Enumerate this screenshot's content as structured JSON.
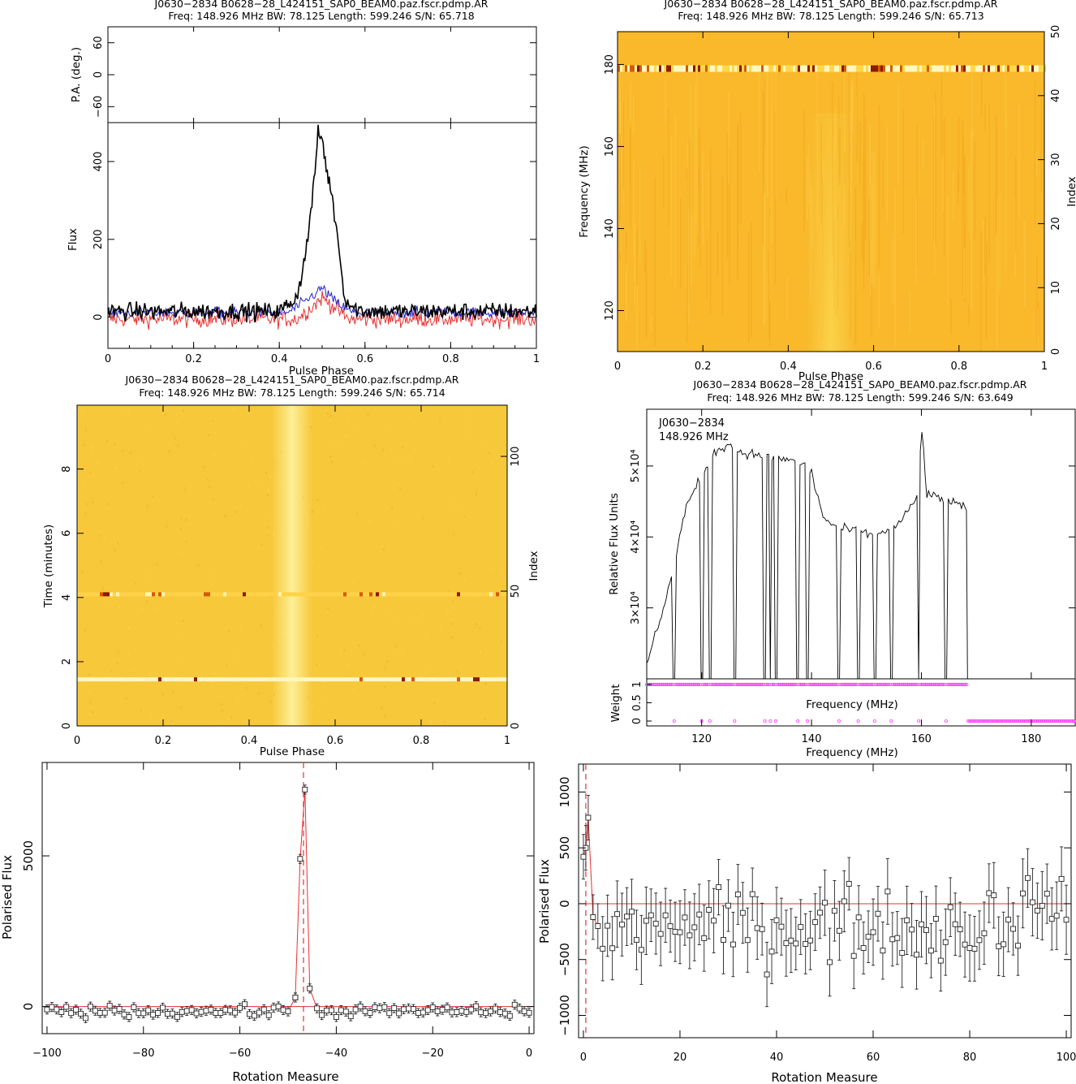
{
  "colors": {
    "heat_bg": "#f9b92b",
    "heat_bg2": "#f6c83a",
    "pulse_band": "#fff170",
    "rfi_dark": "#8c1a00",
    "rfi_light": "#fff7c0",
    "stokes_i": "#000000",
    "stokes_l": "#e83030",
    "stokes_v": "#2020d0",
    "weight_points": "#ff3cff",
    "rm_fit": "#e83030"
  },
  "chart_data": [
    {
      "id": "profile",
      "type": "line",
      "title_line1": "J0630−2834  B0628−28_L424151_SAP0_BEAM0.paz.fscr.pdmp.AR",
      "title_line2": "Freq: 148.926 MHz  BW: 78.125  Length: 599.246  S/N: 65.718",
      "pa_ylabel": "P.A. (deg.)",
      "pa_yticks": [
        "60",
        "0",
        "−60"
      ],
      "pa_ylim": [
        -90,
        90
      ],
      "ylabel": "Flux",
      "xlabel": "Pulse Phase",
      "xlim": [
        0,
        1
      ],
      "ylim": [
        -80,
        500
      ],
      "xticks": [
        "0",
        "0.2",
        "0.4",
        "0.6",
        "0.8",
        "1"
      ],
      "yticks": [
        "0",
        "200",
        "400"
      ],
      "series": [
        {
          "key": "I",
          "x": [
            0,
            0.4,
            0.44,
            0.46,
            0.48,
            0.49,
            0.5,
            0.51,
            0.52,
            0.54,
            0.55,
            0.57,
            0.6,
            1.0
          ],
          "values": [
            15,
            15,
            50,
            150,
            330,
            470,
            460,
            380,
            330,
            180,
            60,
            25,
            15,
            15
          ]
        },
        {
          "key": "L",
          "x": [
            0,
            0.44,
            0.47,
            0.5,
            0.53,
            0.56,
            1.0
          ],
          "values": [
            -5,
            -5,
            20,
            50,
            25,
            -5,
            -5
          ]
        },
        {
          "key": "V",
          "x": [
            0,
            0.42,
            0.46,
            0.5,
            0.53,
            0.57,
            1.0
          ],
          "values": [
            12,
            12,
            40,
            75,
            40,
            12,
            12
          ]
        }
      ]
    },
    {
      "id": "freq_phase",
      "type": "heatmap",
      "title_line1": "J0630−2834  B0628−28_L424151_SAP0_BEAM0.paz.fscr.pdmp.AR",
      "title_line2": "Freq: 148.926 MHz  BW: 78.125  Length: 599.246  S/N: 65.713",
      "xlabel": "Pulse Phase",
      "ylabel": "Frequency (MHz)",
      "ylabel_right": "Index",
      "xlim": [
        0,
        1
      ],
      "ylim": [
        110,
        188
      ],
      "ylim_right": [
        0,
        50
      ],
      "xticks": [
        "0",
        "0.2",
        "0.4",
        "0.6",
        "0.8",
        "1"
      ],
      "yticks": [
        "120",
        "140",
        "160",
        "180"
      ],
      "yticks_right": [
        "0",
        "10",
        "20",
        "30",
        "40",
        "50"
      ],
      "pulse_phase": 0.5,
      "rfi_rows_mhz": [
        179
      ]
    },
    {
      "id": "time_phase",
      "type": "heatmap",
      "title_line1": "J0630−2834  B0628−28_L424151_SAP0_BEAM0.paz.fscr.pdmp.AR",
      "title_line2": "Freq: 148.926 MHz  BW: 78.125  Length: 599.246  S/N: 65.714",
      "xlabel": "Pulse Phase",
      "ylabel": "Time (minutes)",
      "ylabel_right": "Index",
      "xlim": [
        0,
        1
      ],
      "ylim": [
        0,
        9.99
      ],
      "ylim_right": [
        0,
        119
      ],
      "xticks": [
        "0",
        "0.2",
        "0.4",
        "0.6",
        "0.8",
        "1"
      ],
      "yticks": [
        "0",
        "2",
        "4",
        "6",
        "8"
      ],
      "yticks_right": [
        "0",
        "50",
        "100"
      ],
      "pulse_phase": 0.51,
      "rfi_rows_min": [
        4.1,
        1.45
      ]
    },
    {
      "id": "bandpass",
      "type": "line",
      "title_line1": "J0630−2834  B0628−28_L424151_SAP0_BEAM0.paz.fscr.pdmp.AR",
      "title_line2": "Freq: 148.926 MHz  BW: 78.125  Length: 599.246  S/N: 63.649",
      "annotation1": "J0630−2834",
      "annotation2": "148.926 MHz",
      "ylabel": "Relative Flux Units",
      "xlabel": "Frequency (MHz)",
      "weight_label": "Weight",
      "weight_xlabel": "Frequency (MHz)",
      "xlim": [
        110,
        188
      ],
      "xticks": [
        "120",
        "140",
        "160",
        "180"
      ],
      "ylim": [
        20000,
        58000
      ],
      "yticks": [
        "3×10⁴",
        "4×10⁴",
        "5×10⁴"
      ],
      "weight_ticks": [
        "0",
        "0.5",
        "1"
      ],
      "freq": [
        110,
        113,
        115,
        117,
        119,
        121,
        123,
        125,
        127,
        130,
        135,
        138,
        140,
        142,
        144,
        146,
        148,
        150,
        152,
        154,
        156,
        158,
        159.5,
        160,
        161,
        163,
        165,
        168.4
      ],
      "values": [
        22000,
        30000,
        36000,
        44000,
        47000,
        50000,
        52500,
        53000,
        52000,
        51500,
        51000,
        50500,
        49000,
        43000,
        41500,
        41000,
        41000,
        40500,
        40500,
        41000,
        42000,
        44000,
        46000,
        56000,
        46000,
        45500,
        45000,
        44000
      ],
      "zero_weight_mhz": [
        115,
        120,
        121.5,
        126,
        131.5,
        132.5,
        133.5,
        137.5,
        139.3,
        145,
        148.5,
        151.5,
        154.5,
        159.5,
        164.5
      ],
      "upper_cutoff_mhz": 168.4
    },
    {
      "id": "rm_narrow",
      "type": "scatter",
      "xlabel": "Rotation Measure",
      "ylabel": "Polarised Flux",
      "xlim": [
        -101,
        1
      ],
      "ylim": [
        -900,
        8100
      ],
      "xticks": [
        "−100",
        "−80",
        "−60",
        "−40",
        "−20",
        "0"
      ],
      "yticks": [
        "0",
        "5000"
      ],
      "best_rm": -46.8,
      "baseline": 0,
      "peak_x": [
        -48.5,
        -47.5,
        -46.5,
        -45.5
      ],
      "peak_y": [
        300,
        4900,
        7200,
        600
      ]
    },
    {
      "id": "rm_wide",
      "type": "scatter",
      "xlabel": "Rotation Measure",
      "ylabel": "Polarised Flux",
      "xlim": [
        -1,
        101
      ],
      "ylim": [
        -1200,
        1250
      ],
      "xticks": [
        "0",
        "20",
        "40",
        "60",
        "80",
        "100"
      ],
      "yticks": [
        "−1000",
        "−500",
        "0",
        "500",
        "1000"
      ],
      "best_rm": 0.5,
      "baseline": 0,
      "first_x": [
        0,
        0.5,
        1,
        2,
        3
      ],
      "first_y": [
        420,
        500,
        770,
        -120,
        -200
      ]
    }
  ]
}
